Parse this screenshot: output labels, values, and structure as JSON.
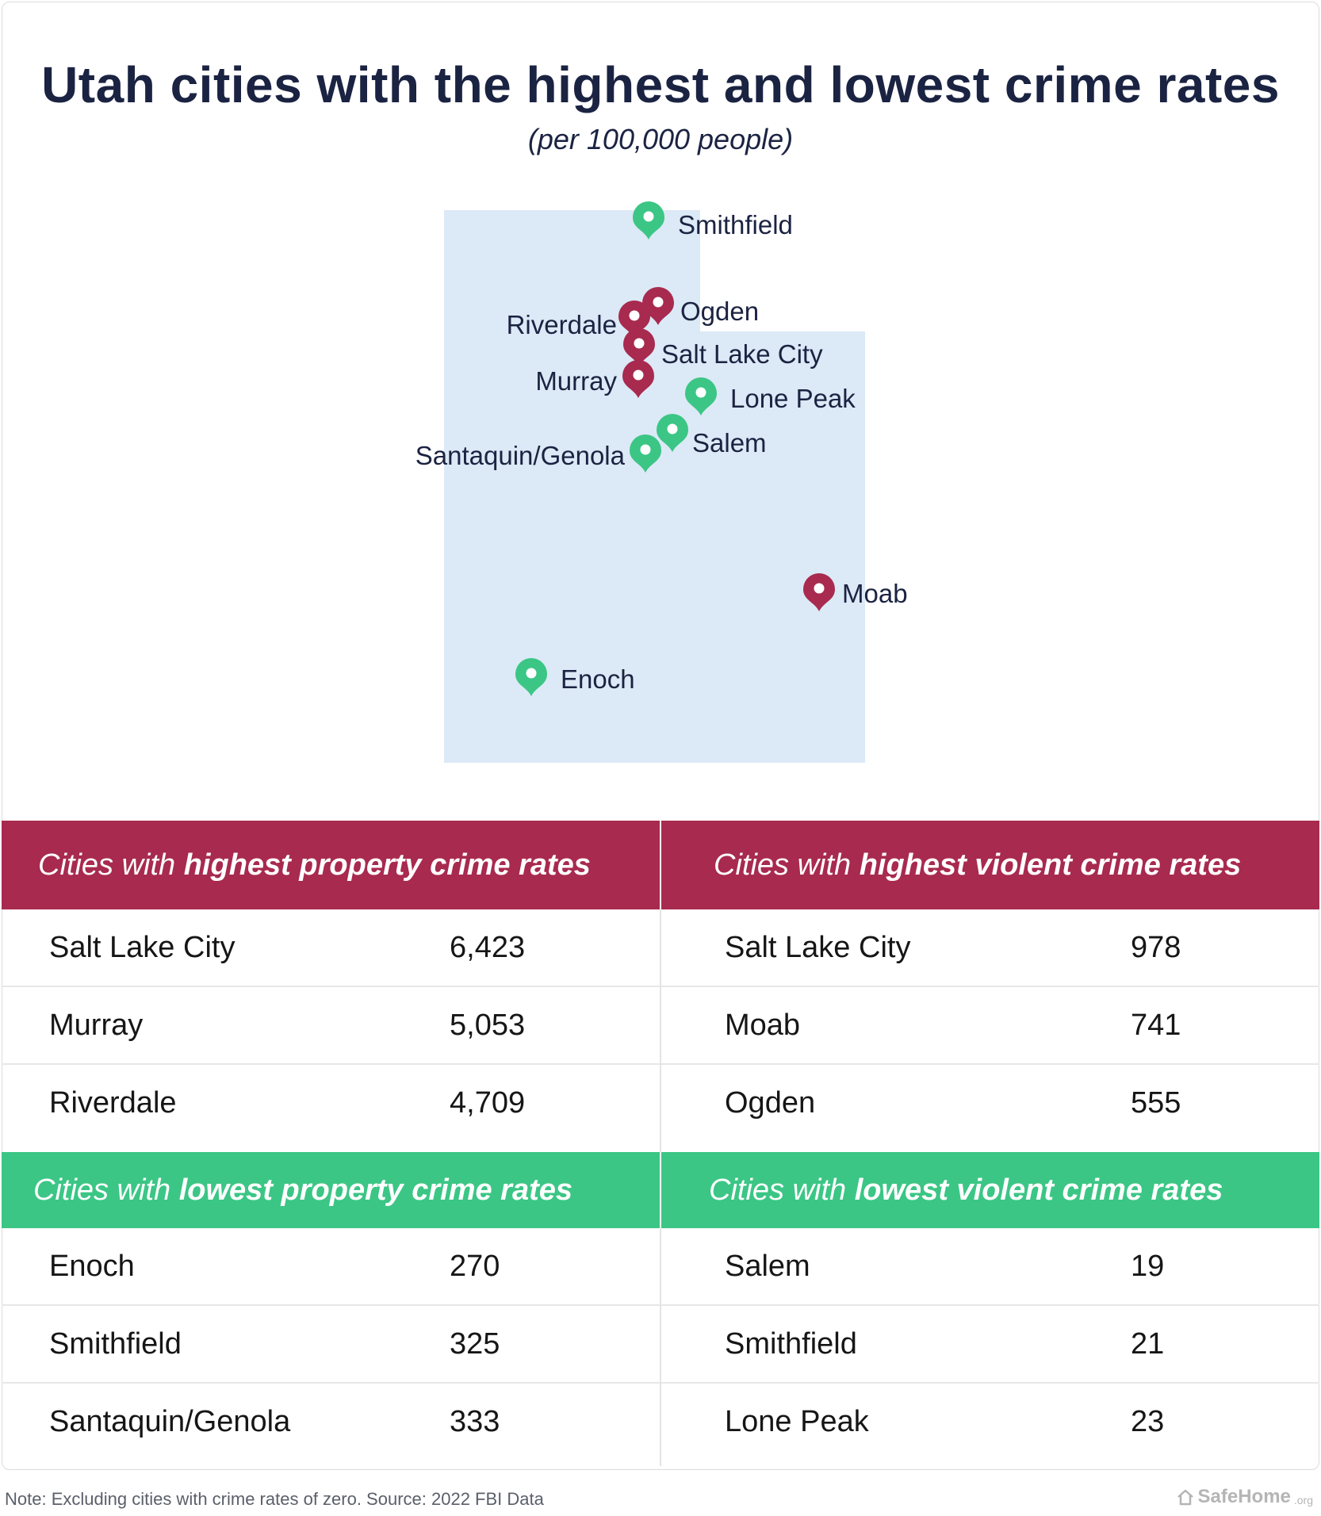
{
  "title": "Utah cities with the highest and lowest crime rates",
  "subtitle": "(per 100,000 people)",
  "colors": {
    "high": "#a82a4f",
    "low": "#3bc685",
    "state_fill": "#dce9f6",
    "text": "#1b2342"
  },
  "map": {
    "region": "Utah",
    "markers": [
      {
        "label": "Smithfield",
        "category": "low",
        "icon": "map-pin-icon"
      },
      {
        "label": "Ogden",
        "category": "high",
        "icon": "map-pin-icon"
      },
      {
        "label": "Riverdale",
        "category": "high",
        "icon": "map-pin-icon"
      },
      {
        "label": "Salt Lake City",
        "category": "high",
        "icon": "map-pin-icon"
      },
      {
        "label": "Murray",
        "category": "high",
        "icon": "map-pin-icon"
      },
      {
        "label": "Lone Peak",
        "category": "low",
        "icon": "map-pin-icon"
      },
      {
        "label": "Salem",
        "category": "low",
        "icon": "map-pin-icon"
      },
      {
        "label": "Santaquin/Genola",
        "category": "low",
        "icon": "map-pin-icon"
      },
      {
        "label": "Moab",
        "category": "high",
        "icon": "map-pin-icon"
      },
      {
        "label": "Enoch",
        "category": "low",
        "icon": "map-pin-icon"
      }
    ]
  },
  "tables": {
    "high_property": {
      "prefix": "Cities with ",
      "emphasis": "highest property crime rates",
      "rows": [
        {
          "city": "Salt Lake City",
          "value": "6,423"
        },
        {
          "city": "Murray",
          "value": "5,053"
        },
        {
          "city": "Riverdale",
          "value": "4,709"
        }
      ]
    },
    "high_violent": {
      "prefix": "Cities with ",
      "emphasis": "highest violent crime rates",
      "rows": [
        {
          "city": "Salt Lake City",
          "value": "978"
        },
        {
          "city": "Moab",
          "value": "741"
        },
        {
          "city": "Ogden",
          "value": "555"
        }
      ]
    },
    "low_property": {
      "prefix": "Cities with ",
      "emphasis": "lowest property crime rates",
      "rows": [
        {
          "city": "Enoch",
          "value": "270"
        },
        {
          "city": "Smithfield",
          "value": "325"
        },
        {
          "city": "Santaquin/Genola",
          "value": "333"
        }
      ]
    },
    "low_violent": {
      "prefix": "Cities with ",
      "emphasis": "lowest violent crime rates",
      "rows": [
        {
          "city": "Salem",
          "value": "19"
        },
        {
          "city": "Smithfield",
          "value": "21"
        },
        {
          "city": "Lone Peak",
          "value": "23"
        }
      ]
    }
  },
  "footer": {
    "note": "Note: Excluding cities with crime rates of zero. Source: 2022 FBI Data",
    "brand": "SafeHome",
    "brand_suffix": ".org",
    "brand_icon": "house-icon"
  }
}
